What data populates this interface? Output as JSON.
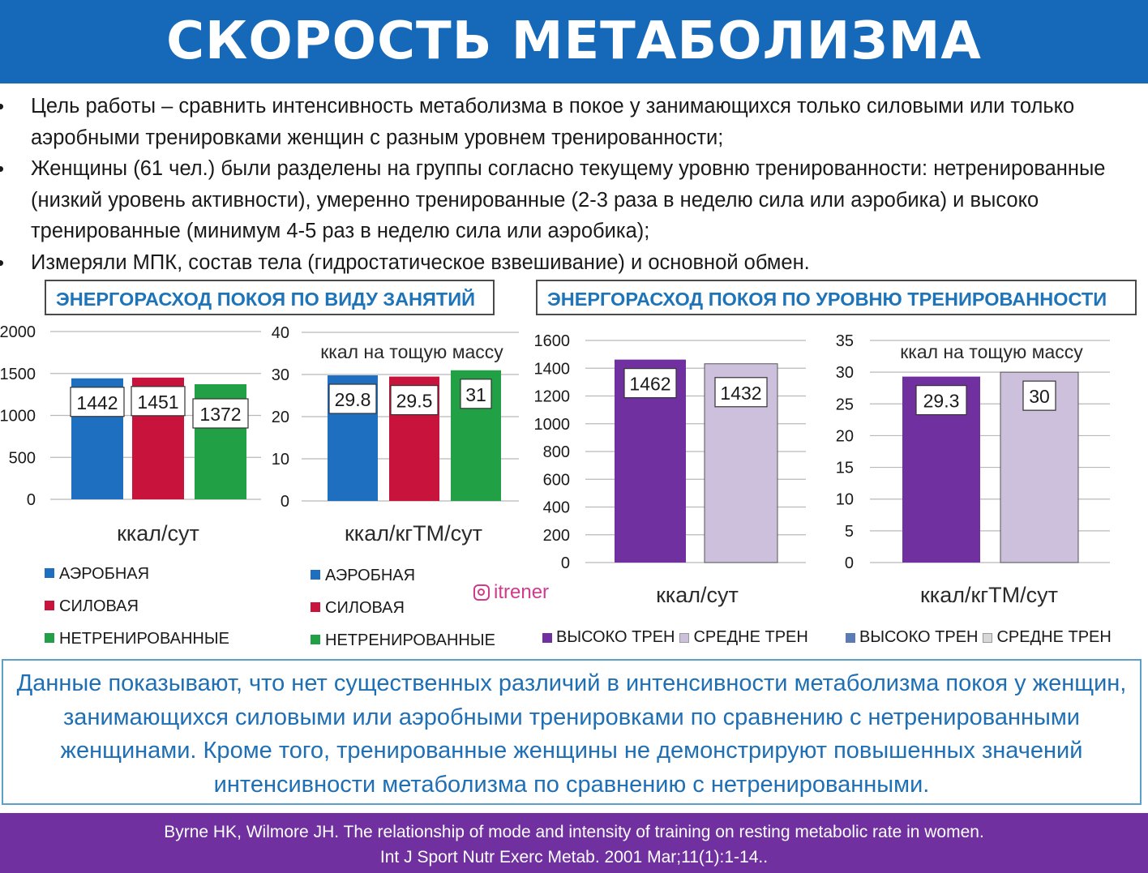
{
  "header": {
    "title": "СКОРОСТЬ МЕТАБОЛИЗМА"
  },
  "bullets": [
    "Цель работы – сравнить интенсивность метаболизма в покое у занимающихся только силовыми или только аэробными тренировками женщин с разным уровнем тренированности;",
    "Женщины (61 чел.) были разделены на группы согласно текущему уровню тренированности: нетренированные (низкий уровень активности), умеренно тренированные (2-3 раза в неделю сила или аэробика) и высоко тренированные (минимум 4-5 раз в неделю сила или аэробика);",
    "Измеряли МПК, состав тела (гидростатическое взвешивание) и основной обмен."
  ],
  "panels": {
    "left_title": "ЭНЕРГОРАСХОД ПОКОЯ ПО ВИДУ ЗАНЯТИЙ",
    "right_title": "ЭНЕРГОРАСХОД ПОКОЯ ПО УРОВНЮ ТРЕНИРОВАННОСТИ"
  },
  "watermark": "itrener",
  "colors": {
    "header_bg": "#1569b8",
    "footer_bg": "#7030a0",
    "aerobic": "#1f6fc0",
    "strength": "#c8143c",
    "untrained": "#22a046",
    "high": "#7030a0",
    "medium": "#ccc0dc"
  },
  "chart_data": [
    {
      "type": "bar",
      "title": "",
      "xlabel": "ккал/сут",
      "ylabel": "",
      "categories": [
        "АЭРОБНАЯ",
        "СИЛОВАЯ",
        "НЕТРЕНИРОВАННЫЕ"
      ],
      "values": [
        1442,
        1451,
        1372
      ],
      "data_labels": [
        "1442",
        "1451",
        "1372"
      ],
      "ylim": [
        0,
        2000
      ],
      "yticks": [
        "0",
        "500",
        "1000",
        "1500",
        "2000"
      ],
      "legend": [
        "АЭРОБНАЯ",
        "СИЛОВАЯ",
        "НЕТРЕНИРОВАННЫЕ"
      ]
    },
    {
      "type": "bar",
      "title": "ккал на тощую массу",
      "xlabel": "ккал/кгТМ/сут",
      "ylabel": "",
      "categories": [
        "АЭРОБНАЯ",
        "СИЛОВАЯ",
        "НЕТРЕНИРОВАННЫЕ"
      ],
      "values": [
        29.8,
        29.5,
        31
      ],
      "data_labels": [
        "29.8",
        "29.5",
        "31"
      ],
      "ylim": [
        0,
        40
      ],
      "yticks": [
        "0",
        "10",
        "20",
        "30",
        "40"
      ],
      "legend": [
        "АЭРОБНАЯ",
        "СИЛОВАЯ",
        "НЕТРЕНИРОВАННЫЕ"
      ]
    },
    {
      "type": "bar",
      "title": "",
      "xlabel": "ккал/сут",
      "ylabel": "",
      "categories": [
        "ВЫСОКО ТРЕН",
        "СРЕДНЕ ТРЕН"
      ],
      "values": [
        1462,
        1432
      ],
      "data_labels": [
        "1462",
        "1432"
      ],
      "ylim": [
        0,
        1600
      ],
      "yticks": [
        "0",
        "200",
        "400",
        "600",
        "800",
        "1000",
        "1200",
        "1400",
        "1600"
      ],
      "legend": [
        "ВЫСОКО ТРЕН",
        "СРЕДНЕ ТРЕН"
      ]
    },
    {
      "type": "bar",
      "title": "ккал на тощую массу",
      "xlabel": "ккал/кгТМ/сут",
      "ylabel": "",
      "categories": [
        "ВЫСОКО ТРЕН",
        "СРЕДНЕ ТРЕН"
      ],
      "values": [
        29.3,
        30
      ],
      "data_labels": [
        "29.3",
        "30"
      ],
      "ylim": [
        0,
        35
      ],
      "yticks": [
        "0",
        "5",
        "10",
        "15",
        "20",
        "25",
        "30",
        "35"
      ],
      "legend": [
        "ВЫСОКО ТРЕН",
        "СРЕДНЕ ТРЕН"
      ]
    }
  ],
  "conclusion": "Данные показывают, что нет существенных различий в интенсивности метаболизма покоя у женщин, занимающихся силовыми или аэробными тренировками по сравнению с нетренированными женщинами. Кроме того, тренированные женщины не демонстрируют повышенных значений интенсивности метаболизма по сравнению с нетренированными.",
  "footer": {
    "line1": "Byrne HK, Wilmore JH. The relationship of mode and intensity of training on resting metabolic rate in women.",
    "line2": "Int J Sport Nutr Exerc Metab. 2001 Mar;11(1):1-14.."
  }
}
